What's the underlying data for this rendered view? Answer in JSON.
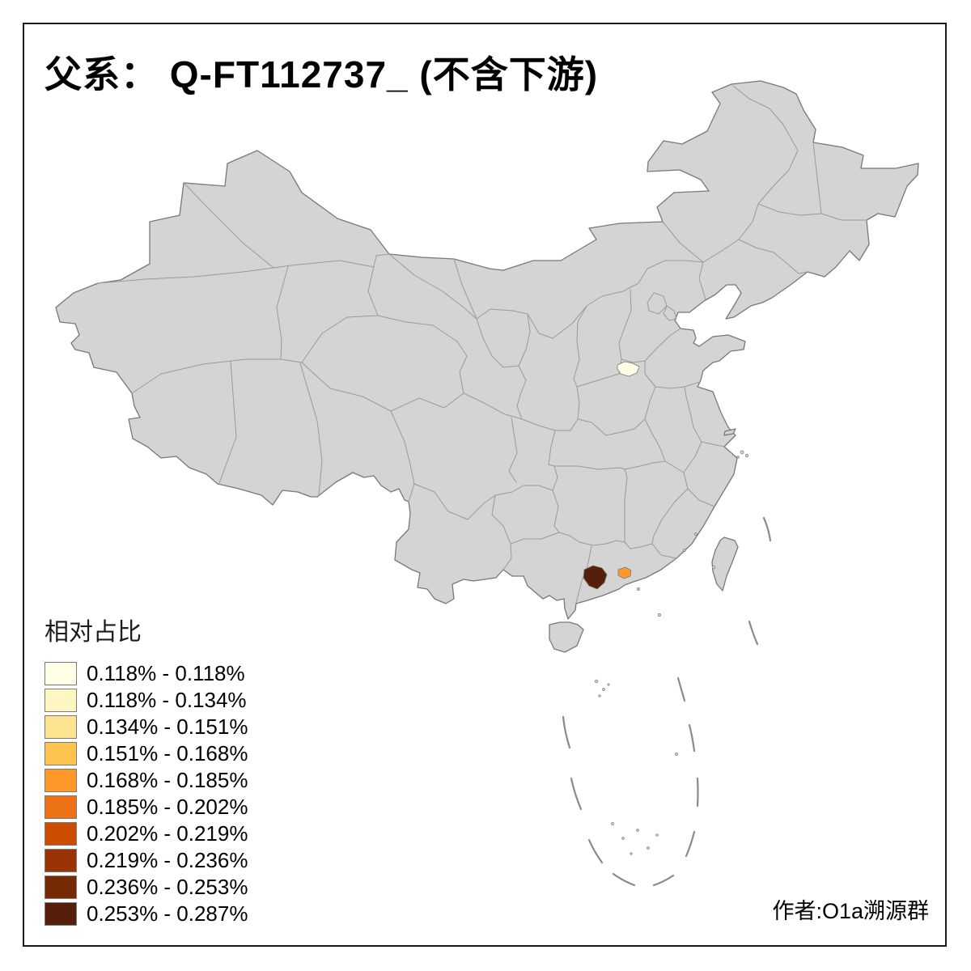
{
  "title": "父系： Q-FT112737_ (不含下游)",
  "attribution": "作者:O1a溯源群",
  "legend": {
    "title": "相对占比",
    "entries": [
      {
        "label": "0.118% - 0.118%",
        "color": "#FFFFE5"
      },
      {
        "label": "0.118% - 0.134%",
        "color": "#FFF7C2"
      },
      {
        "label": "0.134% - 0.151%",
        "color": "#FEE391"
      },
      {
        "label": "0.151% - 0.168%",
        "color": "#FEC44F"
      },
      {
        "label": "0.168% - 0.185%",
        "color": "#FE9929"
      },
      {
        "label": "0.185% - 0.202%",
        "color": "#EC7014"
      },
      {
        "label": "0.202% - 0.219%",
        "color": "#CC4C02"
      },
      {
        "label": "0.219% - 0.236%",
        "color": "#9A3404"
      },
      {
        "label": "0.236% - 0.253%",
        "color": "#752905"
      },
      {
        "label": "0.253% - 0.287%",
        "color": "#551F0A"
      }
    ]
  },
  "map": {
    "background": "#FFFFFF",
    "land_color": "#D4D4D4",
    "outline_color": "#787878",
    "inner_border_color": "#9A9A9A",
    "dash_line_color": "#8A8A8A",
    "highlighted_regions": [
      {
        "id": "region-north-henan",
        "color": "#FFFFE5"
      },
      {
        "id": "region-pearl-delta",
        "color": "#FE9929"
      },
      {
        "id": "region-west-guangdong",
        "color": "#551F0A"
      }
    ]
  }
}
